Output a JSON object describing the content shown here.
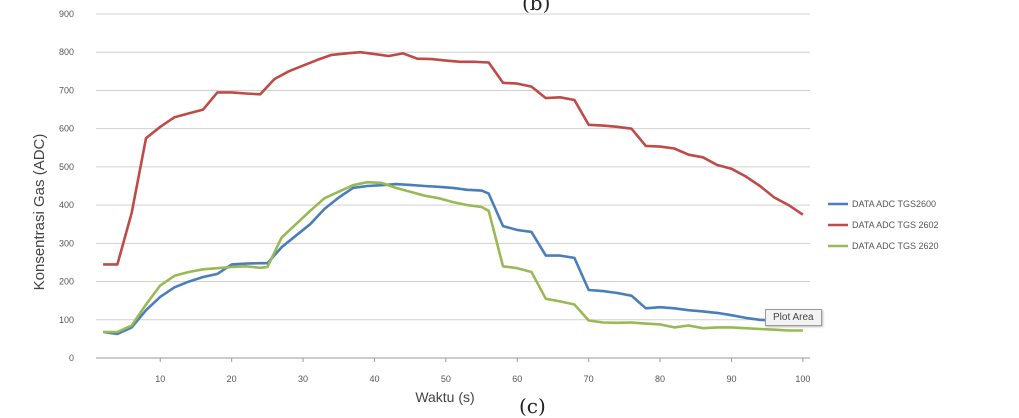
{
  "captions": {
    "top": "(b)",
    "bottom": "(c)"
  },
  "tooltip": "Plot Area",
  "chart_data": {
    "type": "line",
    "title": "",
    "xlabel": "Waktu (s)",
    "ylabel": "Konsentrasi Gas (ADC)",
    "xlim": [
      1,
      101
    ],
    "ylim": [
      0,
      900
    ],
    "xticks": [
      10,
      20,
      30,
      40,
      50,
      60,
      70,
      80,
      90,
      100
    ],
    "yticks": [
      0,
      100,
      200,
      300,
      400,
      500,
      600,
      700,
      800,
      900
    ],
    "grid": "horizontal",
    "legend": "right",
    "series": [
      {
        "name": "DATA ADC TGS2600",
        "color": "#4a7ebb",
        "points": [
          [
            2,
            68
          ],
          [
            4,
            63
          ],
          [
            6,
            80
          ],
          [
            8,
            125
          ],
          [
            10,
            160
          ],
          [
            12,
            185
          ],
          [
            14,
            200
          ],
          [
            16,
            212
          ],
          [
            18,
            220
          ],
          [
            20,
            245
          ],
          [
            22,
            247
          ],
          [
            24,
            248
          ],
          [
            25,
            248
          ],
          [
            27,
            290
          ],
          [
            29,
            320
          ],
          [
            31,
            350
          ],
          [
            33,
            390
          ],
          [
            35,
            420
          ],
          [
            37,
            445
          ],
          [
            39,
            450
          ],
          [
            41,
            452
          ],
          [
            43,
            455
          ],
          [
            45,
            453
          ],
          [
            47,
            450
          ],
          [
            49,
            448
          ],
          [
            51,
            445
          ],
          [
            53,
            440
          ],
          [
            55,
            438
          ],
          [
            56,
            430
          ],
          [
            58,
            345
          ],
          [
            60,
            335
          ],
          [
            62,
            330
          ],
          [
            64,
            268
          ],
          [
            66,
            268
          ],
          [
            68,
            262
          ],
          [
            70,
            178
          ],
          [
            72,
            175
          ],
          [
            74,
            170
          ],
          [
            76,
            163
          ],
          [
            78,
            130
          ],
          [
            80,
            133
          ],
          [
            82,
            130
          ],
          [
            84,
            125
          ],
          [
            86,
            122
          ],
          [
            88,
            118
          ],
          [
            90,
            112
          ],
          [
            92,
            105
          ],
          [
            94,
            100
          ],
          [
            96,
            98
          ],
          [
            98,
            96
          ],
          [
            100,
            95
          ]
        ]
      },
      {
        "name": "DATA ADC TGS 2602",
        "color": "#be4b48",
        "points": [
          [
            2,
            245
          ],
          [
            4,
            245
          ],
          [
            6,
            380
          ],
          [
            8,
            575
          ],
          [
            10,
            605
          ],
          [
            12,
            630
          ],
          [
            14,
            640
          ],
          [
            16,
            650
          ],
          [
            18,
            695
          ],
          [
            20,
            695
          ],
          [
            22,
            692
          ],
          [
            24,
            690
          ],
          [
            26,
            730
          ],
          [
            28,
            750
          ],
          [
            30,
            765
          ],
          [
            32,
            780
          ],
          [
            34,
            793
          ],
          [
            36,
            797
          ],
          [
            38,
            800
          ],
          [
            40,
            795
          ],
          [
            42,
            790
          ],
          [
            44,
            797
          ],
          [
            46,
            783
          ],
          [
            48,
            782
          ],
          [
            50,
            778
          ],
          [
            52,
            775
          ],
          [
            54,
            775
          ],
          [
            56,
            773
          ],
          [
            58,
            720
          ],
          [
            60,
            718
          ],
          [
            62,
            710
          ],
          [
            64,
            680
          ],
          [
            66,
            682
          ],
          [
            68,
            675
          ],
          [
            70,
            610
          ],
          [
            72,
            608
          ],
          [
            74,
            605
          ],
          [
            76,
            600
          ],
          [
            78,
            555
          ],
          [
            80,
            553
          ],
          [
            82,
            548
          ],
          [
            84,
            532
          ],
          [
            86,
            525
          ],
          [
            88,
            505
          ],
          [
            90,
            495
          ],
          [
            92,
            475
          ],
          [
            94,
            450
          ],
          [
            96,
            420
          ],
          [
            98,
            400
          ],
          [
            100,
            375
          ]
        ]
      },
      {
        "name": "DATA ADC TGS 2620",
        "color": "#98b954",
        "points": [
          [
            2,
            68
          ],
          [
            4,
            68
          ],
          [
            6,
            85
          ],
          [
            8,
            140
          ],
          [
            10,
            190
          ],
          [
            12,
            215
          ],
          [
            14,
            225
          ],
          [
            16,
            232
          ],
          [
            18,
            235
          ],
          [
            20,
            238
          ],
          [
            22,
            240
          ],
          [
            24,
            236
          ],
          [
            25,
            238
          ],
          [
            27,
            315
          ],
          [
            29,
            350
          ],
          [
            31,
            385
          ],
          [
            33,
            418
          ],
          [
            35,
            435
          ],
          [
            37,
            452
          ],
          [
            39,
            460
          ],
          [
            41,
            458
          ],
          [
            43,
            445
          ],
          [
            45,
            435
          ],
          [
            47,
            425
          ],
          [
            49,
            418
          ],
          [
            51,
            408
          ],
          [
            53,
            400
          ],
          [
            55,
            395
          ],
          [
            56,
            385
          ],
          [
            58,
            240
          ],
          [
            60,
            235
          ],
          [
            62,
            225
          ],
          [
            64,
            155
          ],
          [
            66,
            148
          ],
          [
            68,
            140
          ],
          [
            70,
            98
          ],
          [
            72,
            93
          ],
          [
            74,
            92
          ],
          [
            76,
            93
          ],
          [
            78,
            90
          ],
          [
            80,
            88
          ],
          [
            82,
            80
          ],
          [
            84,
            85
          ],
          [
            86,
            78
          ],
          [
            88,
            80
          ],
          [
            90,
            80
          ],
          [
            92,
            78
          ],
          [
            94,
            76
          ],
          [
            96,
            74
          ],
          [
            98,
            72
          ],
          [
            100,
            72
          ]
        ]
      }
    ]
  }
}
